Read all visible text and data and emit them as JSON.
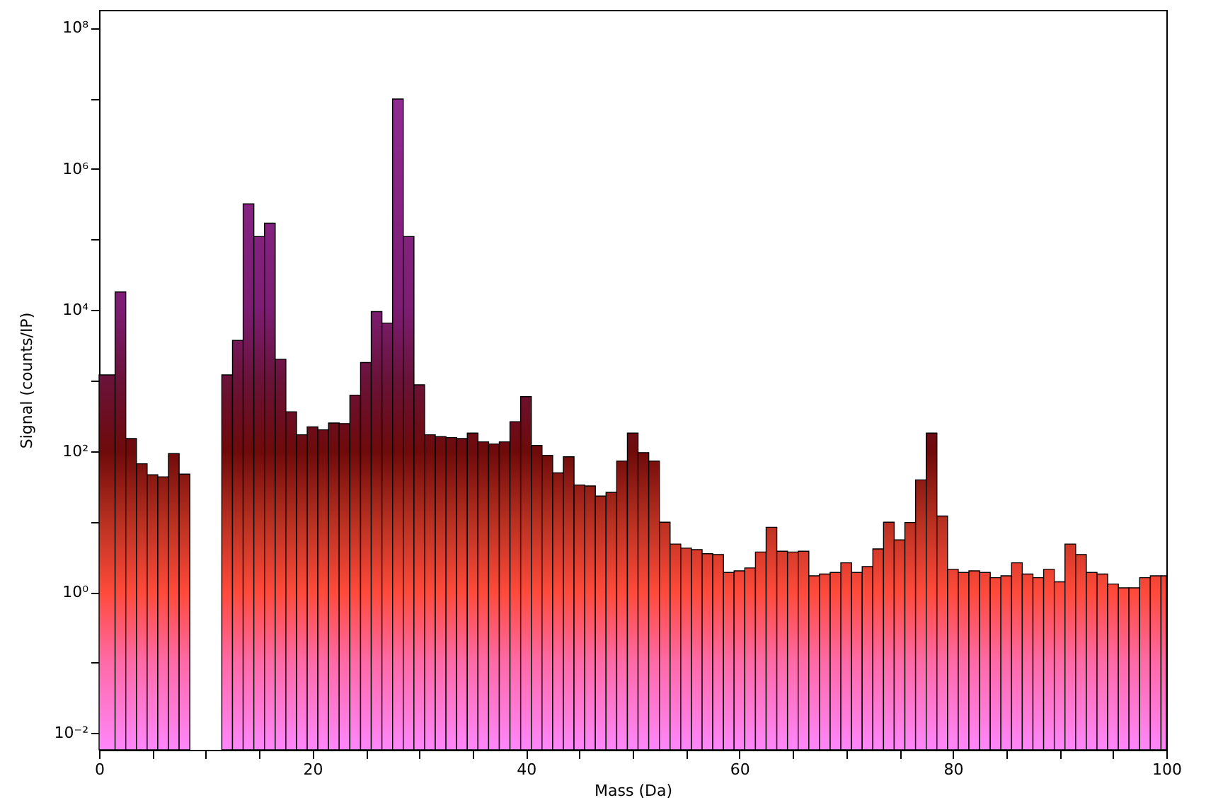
{
  "chart_data": {
    "type": "histogram",
    "xlabel": "Mass (Da)",
    "ylabel": "Signal (counts/IP)",
    "log": "y",
    "bins": [
      0,
      1.5,
      2.5,
      3.5,
      4.5,
      5.5,
      6.5,
      7.5,
      8.5,
      11.5,
      12.5,
      13.5,
      14.5,
      15.5,
      16.5,
      17.5,
      18.5,
      19.5,
      20.5,
      21.5,
      22.5,
      23.5,
      24.5,
      25.5,
      26.5,
      27.5,
      28.5,
      29.5,
      30.5,
      31.5,
      32.5,
      33.5,
      34.5,
      35.5,
      36.5,
      37.5,
      38.5,
      39.5,
      40.5,
      41.5,
      42.5,
      43.5,
      44.5,
      45.5,
      46.5,
      47.5,
      48.5,
      49.5,
      50.5,
      51.5,
      52.5,
      53.5,
      54.5,
      55.5,
      56.5,
      57.5,
      58.5,
      59.5,
      60.5,
      61.5,
      62.5,
      63.5,
      64.5,
      65.5,
      66.5,
      67.5,
      68.5,
      69.5,
      70.5,
      71.5,
      72.5,
      73.5,
      74.5,
      75.5,
      76.5,
      77.5,
      78.5,
      79.5,
      80.5,
      81.5,
      82.5,
      83.5,
      84.5,
      85.5,
      86.5,
      87.5,
      88.5,
      89.5,
      90.5,
      91.5,
      92.5,
      93.5,
      94.5,
      95.5,
      96.5,
      97.5,
      98.5,
      99.5,
      100
    ],
    "values": [
      1200,
      18000,
      150,
      66,
      46,
      43,
      92,
      47,
      null,
      1200,
      3700,
      320000,
      110000,
      170000,
      2000,
      360,
      170,
      220,
      200,
      250,
      245,
      620,
      1800,
      9500,
      6500,
      9800000,
      110000,
      870,
      170,
      160,
      155,
      150,
      180,
      135,
      126,
      135,
      260,
      590,
      120,
      87,
      49,
      83,
      33,
      32,
      23,
      26,
      72,
      180,
      95,
      72,
      9.8,
      4.8,
      4.2,
      4.0,
      3.5,
      3.4,
      1.9,
      2.0,
      2.2,
      3.7,
      8.3,
      3.8,
      3.7,
      3.8,
      1.7,
      1.8,
      1.9,
      2.6,
      1.9,
      2.3,
      4.1,
      9.8,
      5.5,
      9.7,
      39,
      180,
      12,
      2.1,
      1.9,
      2.0,
      1.9,
      1.6,
      1.7,
      2.6,
      1.8,
      1.6,
      2.1,
      1.4,
      4.8,
      3.4,
      1.9,
      1.8,
      1.3,
      1.15,
      1.15,
      1.6,
      1.7,
      1.7
    ],
    "xlim": [
      0,
      100
    ],
    "xticks": [
      0,
      {
        "value": 5,
        "label": null
      },
      {
        "value": 10,
        "label": null
      },
      {
        "value": 15,
        "label": null
      },
      20,
      {
        "value": 25,
        "label": null
      },
      {
        "value": 30,
        "label": null
      },
      {
        "value": 35,
        "label": null
      },
      40,
      {
        "value": 45,
        "label": null
      },
      {
        "value": 50,
        "label": null
      },
      {
        "value": 55,
        "label": null
      },
      60,
      {
        "value": 65,
        "label": null
      },
      {
        "value": 70,
        "label": null
      },
      {
        "value": 75,
        "label": null
      },
      80,
      {
        "value": 85,
        "label": null
      },
      {
        "value": 90,
        "label": null
      },
      {
        "value": 95,
        "label": null
      },
      100
    ],
    "ylim": [
      0.0058,
      180000000
    ],
    "yticks": [
      {
        "value": 0.01,
        "label": "10⁻²"
      },
      {
        "value": 0.1,
        "label": null
      },
      {
        "value": 1,
        "label": "10⁰"
      },
      {
        "value": 10,
        "label": null
      },
      {
        "value": 100,
        "label": "10²"
      },
      {
        "value": 1000,
        "label": null
      },
      {
        "value": 10000,
        "label": "10⁴"
      },
      {
        "value": 100000,
        "label": null
      },
      {
        "value": 1000000,
        "label": "10⁶"
      },
      {
        "value": 10000000,
        "label": null
      },
      {
        "value": 100000000,
        "label": "10⁸"
      }
    ]
  }
}
